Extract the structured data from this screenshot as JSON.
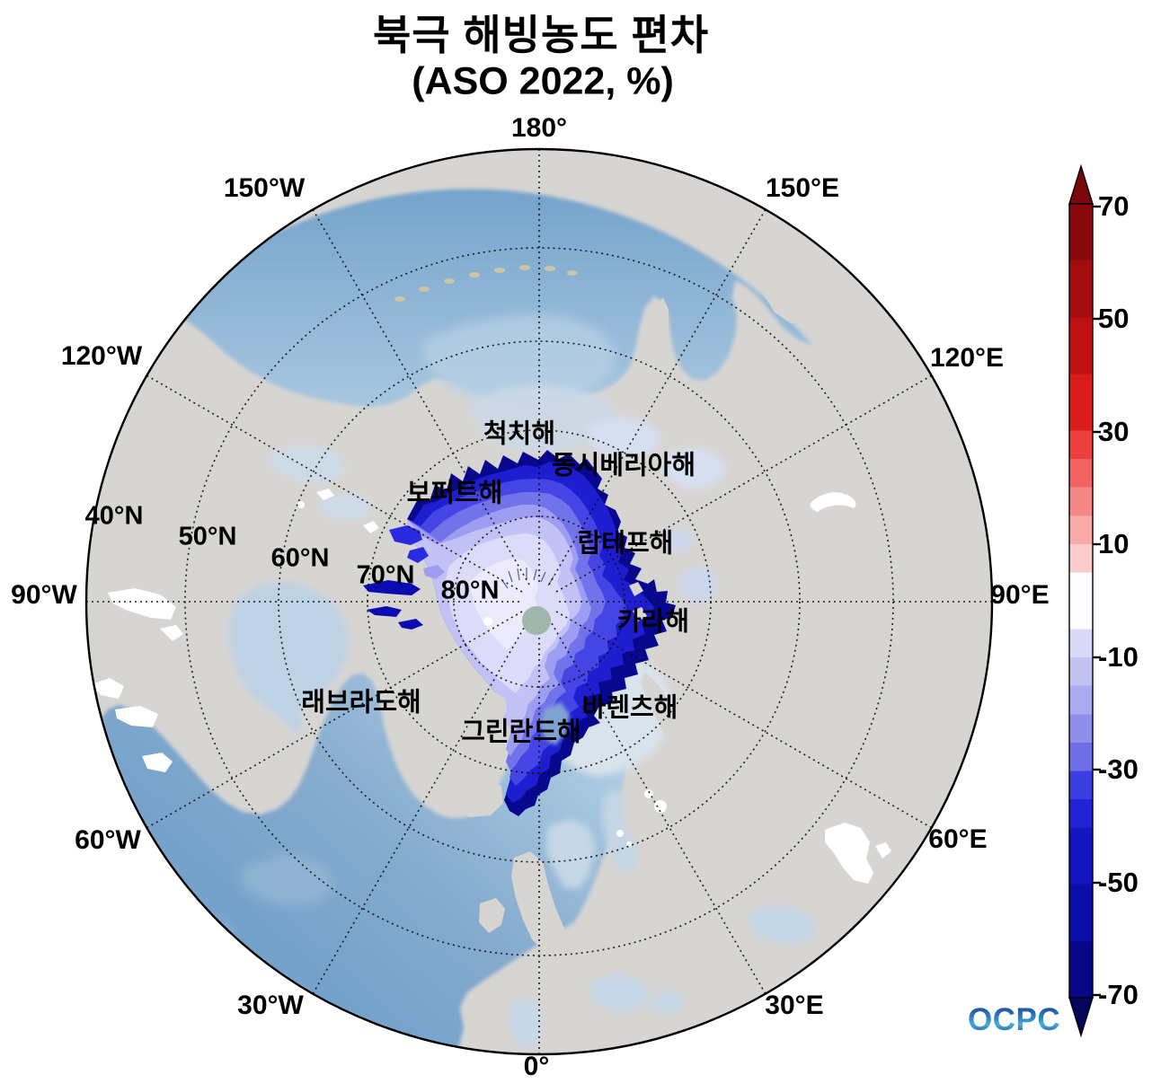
{
  "title": {
    "line1": "북극 해빙농도 편차",
    "line2": "(ASO 2022, %)"
  },
  "map": {
    "projection_note": "North Polar Stereographic",
    "longitude_labels": [
      "180°",
      "150°W",
      "150°E",
      "120°W",
      "120°E",
      "90°W",
      "90°E",
      "60°W",
      "60°E",
      "30°W",
      "30°E",
      "0°"
    ],
    "latitude_labels": [
      "40°N",
      "50°N",
      "60°N",
      "70°N",
      "80°N"
    ],
    "sea_labels": [
      "척치해",
      "동시베리아해",
      "보퍼트해",
      "랍테프해",
      "카라해",
      "바렌츠해",
      "그린란드해",
      "래브라도해"
    ]
  },
  "colorbar": {
    "max": 70,
    "min": -70,
    "tick_labels": [
      "70",
      "50",
      "30",
      "10",
      "-10",
      "-30",
      "-50",
      "-70"
    ],
    "bands": [
      {
        "from": 70,
        "to": 60,
        "color": "#8a090d"
      },
      {
        "from": 60,
        "to": 50,
        "color": "#a30d0f"
      },
      {
        "from": 50,
        "to": 40,
        "color": "#bf1114"
      },
      {
        "from": 40,
        "to": 30,
        "color": "#d91b1b"
      },
      {
        "from": 30,
        "to": 25,
        "color": "#ec4040"
      },
      {
        "from": 25,
        "to": 20,
        "color": "#f26262"
      },
      {
        "from": 20,
        "to": 15,
        "color": "#f68787"
      },
      {
        "from": 15,
        "to": 10,
        "color": "#f9abab"
      },
      {
        "from": 10,
        "to": 5,
        "color": "#fbcccc"
      },
      {
        "from": 5,
        "to": -5,
        "color": "#fdfdff"
      },
      {
        "from": -5,
        "to": -10,
        "color": "#d9d9f7"
      },
      {
        "from": -10,
        "to": -15,
        "color": "#c3c3f3"
      },
      {
        "from": -15,
        "to": -20,
        "color": "#aaaaf0"
      },
      {
        "from": -20,
        "to": -25,
        "color": "#8f8feb"
      },
      {
        "from": -25,
        "to": -30,
        "color": "#6e6ee6"
      },
      {
        "from": -30,
        "to": -35,
        "color": "#3d3de2"
      },
      {
        "from": -35,
        "to": -40,
        "color": "#2323d5"
      },
      {
        "from": -40,
        "to": -50,
        "color": "#1414c0"
      },
      {
        "from": -50,
        "to": -60,
        "color": "#0c0ca6"
      },
      {
        "from": -60,
        "to": -70,
        "color": "#070788"
      }
    ]
  },
  "logo": {
    "text": "OCPC"
  },
  "colors": {
    "land": "#d7d5d2",
    "ocean-deep": "#6d9dc8",
    "ocean-mid": "#85abce",
    "ocean-light": "#abc9e1",
    "ocean-bering": "#b9d0e5",
    "shelf-pale": "#ccd9e7",
    "shelf-pale2": "#d6dff0",
    "barents-pale": "#d8e3eb",
    "lake": "#ffffff",
    "blob1": "#08088f",
    "blob2": "#1e1ed0",
    "blob3": "#4545e5",
    "blob4": "#7272eb",
    "blob5": "#9d9df1",
    "blob6": "#c2c2f6",
    "blob7": "#dcdcfa",
    "blob8": "#eceafd",
    "sliver-navy": "#0b0bb2",
    "sliver-blue": "#2a2ae0",
    "svalbard-spot": "#7fa3d2",
    "pole-dot": "#9eb4a8",
    "aleutian": "#cfc3a6",
    "graticule": "#0a0a0a",
    "cbar-arrow-top": "#79070b",
    "cbar-arrow-bottom": "#05055e",
    "text": "#000000"
  },
  "chart_data": {
    "type": "heatmap",
    "title": "북극 해빙농도 편차 (ASO 2022, %)",
    "variable": "Arctic sea-ice concentration anomaly",
    "period": "ASO 2022",
    "units": "%",
    "colorbar_range": [
      -70,
      70
    ],
    "colorbar_ticks": [
      70,
      50,
      30,
      10,
      -10,
      -30,
      -50,
      -70
    ],
    "dominant_signal": "Strong negative anomalies (-30 to -70%) over the central Arctic Ocean, Beaufort, Chukchi, East Siberian, Laptev, Kara and Greenland Seas; weak negative (0 to -10%) open-ocean areas elsewhere",
    "legend_position": "right"
  }
}
